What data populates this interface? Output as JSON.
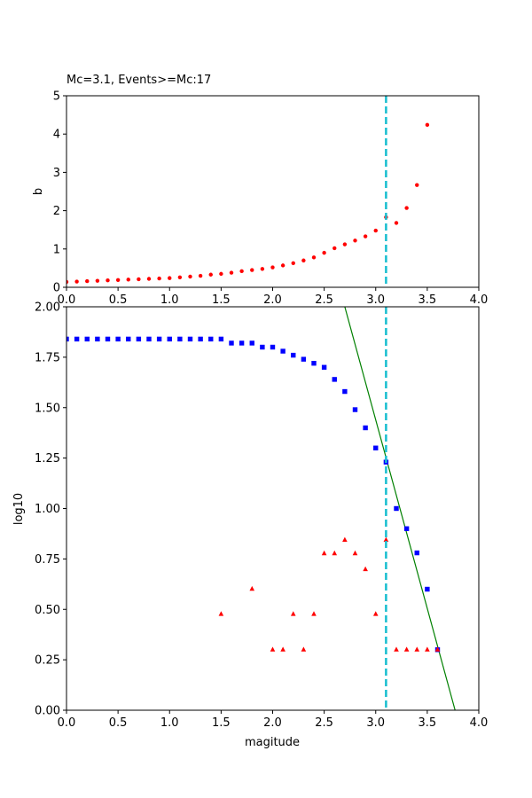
{
  "chart_data": [
    {
      "type": "scatter",
      "title": "Mc=3.1, Events>=Mc:17",
      "xlabel": "",
      "ylabel": "b",
      "xlim": [
        0,
        4
      ],
      "ylim": [
        0,
        5
      ],
      "x_ticks": [
        "0.0",
        "0.5",
        "1.0",
        "1.5",
        "2.0",
        "2.5",
        "3.0",
        "3.5",
        "4.0"
      ],
      "y_ticks": [
        "0",
        "1",
        "2",
        "3",
        "4",
        "5"
      ],
      "grid": false,
      "mc_line": {
        "x": 3.1,
        "color": "#17becf",
        "style": "dashed"
      },
      "series": [
        {
          "marker": "circle",
          "color": "#ff0000",
          "points": [
            [
              0.0,
              0.14
            ],
            [
              0.1,
              0.15
            ],
            [
              0.2,
              0.16
            ],
            [
              0.3,
              0.17
            ],
            [
              0.4,
              0.18
            ],
            [
              0.5,
              0.19
            ],
            [
              0.6,
              0.2
            ],
            [
              0.7,
              0.21
            ],
            [
              0.8,
              0.22
            ],
            [
              0.9,
              0.23
            ],
            [
              1.0,
              0.24
            ],
            [
              1.1,
              0.26
            ],
            [
              1.2,
              0.28
            ],
            [
              1.3,
              0.3
            ],
            [
              1.4,
              0.33
            ],
            [
              1.5,
              0.35
            ],
            [
              1.6,
              0.38
            ],
            [
              1.7,
              0.42
            ],
            [
              1.8,
              0.45
            ],
            [
              1.9,
              0.48
            ],
            [
              2.0,
              0.52
            ],
            [
              2.1,
              0.57
            ],
            [
              2.2,
              0.63
            ],
            [
              2.3,
              0.7
            ],
            [
              2.4,
              0.78
            ],
            [
              2.5,
              0.9
            ],
            [
              2.6,
              1.02
            ],
            [
              2.7,
              1.12
            ],
            [
              2.8,
              1.22
            ],
            [
              2.9,
              1.33
            ],
            [
              3.0,
              1.48
            ],
            [
              3.1,
              1.83
            ],
            [
              3.2,
              1.68
            ],
            [
              3.3,
              2.07
            ],
            [
              3.4,
              2.67
            ],
            [
              3.5,
              4.24
            ]
          ]
        }
      ]
    },
    {
      "type": "scatter",
      "title": "",
      "xlabel": "magitude",
      "ylabel": "log10",
      "xlim": [
        0,
        4
      ],
      "ylim": [
        0,
        2
      ],
      "x_ticks": [
        "0.0",
        "0.5",
        "1.0",
        "1.5",
        "2.0",
        "2.5",
        "3.0",
        "3.5",
        "4.0"
      ],
      "y_ticks": [
        "0.00",
        "0.25",
        "0.50",
        "0.75",
        "1.00",
        "1.25",
        "1.50",
        "1.75",
        "2.00"
      ],
      "grid": false,
      "mc_line": {
        "x": 3.1,
        "color": "#17becf",
        "style": "dashed"
      },
      "fit_line": {
        "color": "#008000",
        "points": [
          [
            2.7,
            2.0
          ],
          [
            3.77,
            0.0
          ]
        ]
      },
      "series": [
        {
          "marker": "square",
          "color": "#0000ff",
          "points": [
            [
              0.0,
              1.84
            ],
            [
              0.1,
              1.84
            ],
            [
              0.2,
              1.84
            ],
            [
              0.3,
              1.84
            ],
            [
              0.4,
              1.84
            ],
            [
              0.5,
              1.84
            ],
            [
              0.6,
              1.84
            ],
            [
              0.7,
              1.84
            ],
            [
              0.8,
              1.84
            ],
            [
              0.9,
              1.84
            ],
            [
              1.0,
              1.84
            ],
            [
              1.1,
              1.84
            ],
            [
              1.2,
              1.84
            ],
            [
              1.3,
              1.84
            ],
            [
              1.4,
              1.84
            ],
            [
              1.5,
              1.84
            ],
            [
              1.6,
              1.82
            ],
            [
              1.7,
              1.82
            ],
            [
              1.8,
              1.82
            ],
            [
              1.9,
              1.8
            ],
            [
              2.0,
              1.8
            ],
            [
              2.1,
              1.78
            ],
            [
              2.2,
              1.76
            ],
            [
              2.3,
              1.74
            ],
            [
              2.4,
              1.72
            ],
            [
              2.5,
              1.7
            ],
            [
              2.6,
              1.64
            ],
            [
              2.7,
              1.58
            ],
            [
              2.8,
              1.49
            ],
            [
              2.9,
              1.4
            ],
            [
              3.0,
              1.3
            ],
            [
              3.1,
              1.23
            ],
            [
              3.2,
              1.0
            ],
            [
              3.3,
              0.9
            ],
            [
              3.4,
              0.78
            ],
            [
              3.5,
              0.6
            ],
            [
              3.6,
              0.3
            ]
          ]
        },
        {
          "marker": "triangle",
          "color": "#ff0000",
          "points": [
            [
              1.5,
              0.477
            ],
            [
              1.8,
              0.602
            ],
            [
              2.0,
              0.301
            ],
            [
              2.1,
              0.301
            ],
            [
              2.2,
              0.477
            ],
            [
              2.3,
              0.301
            ],
            [
              2.4,
              0.477
            ],
            [
              2.5,
              0.778
            ],
            [
              2.6,
              0.778
            ],
            [
              2.7,
              0.845
            ],
            [
              2.8,
              0.778
            ],
            [
              2.9,
              0.699
            ],
            [
              3.0,
              0.477
            ],
            [
              3.1,
              0.845
            ],
            [
              3.2,
              0.301
            ],
            [
              3.3,
              0.301
            ],
            [
              3.4,
              0.301
            ],
            [
              3.5,
              0.301
            ],
            [
              3.6,
              0.301
            ]
          ]
        }
      ]
    }
  ]
}
